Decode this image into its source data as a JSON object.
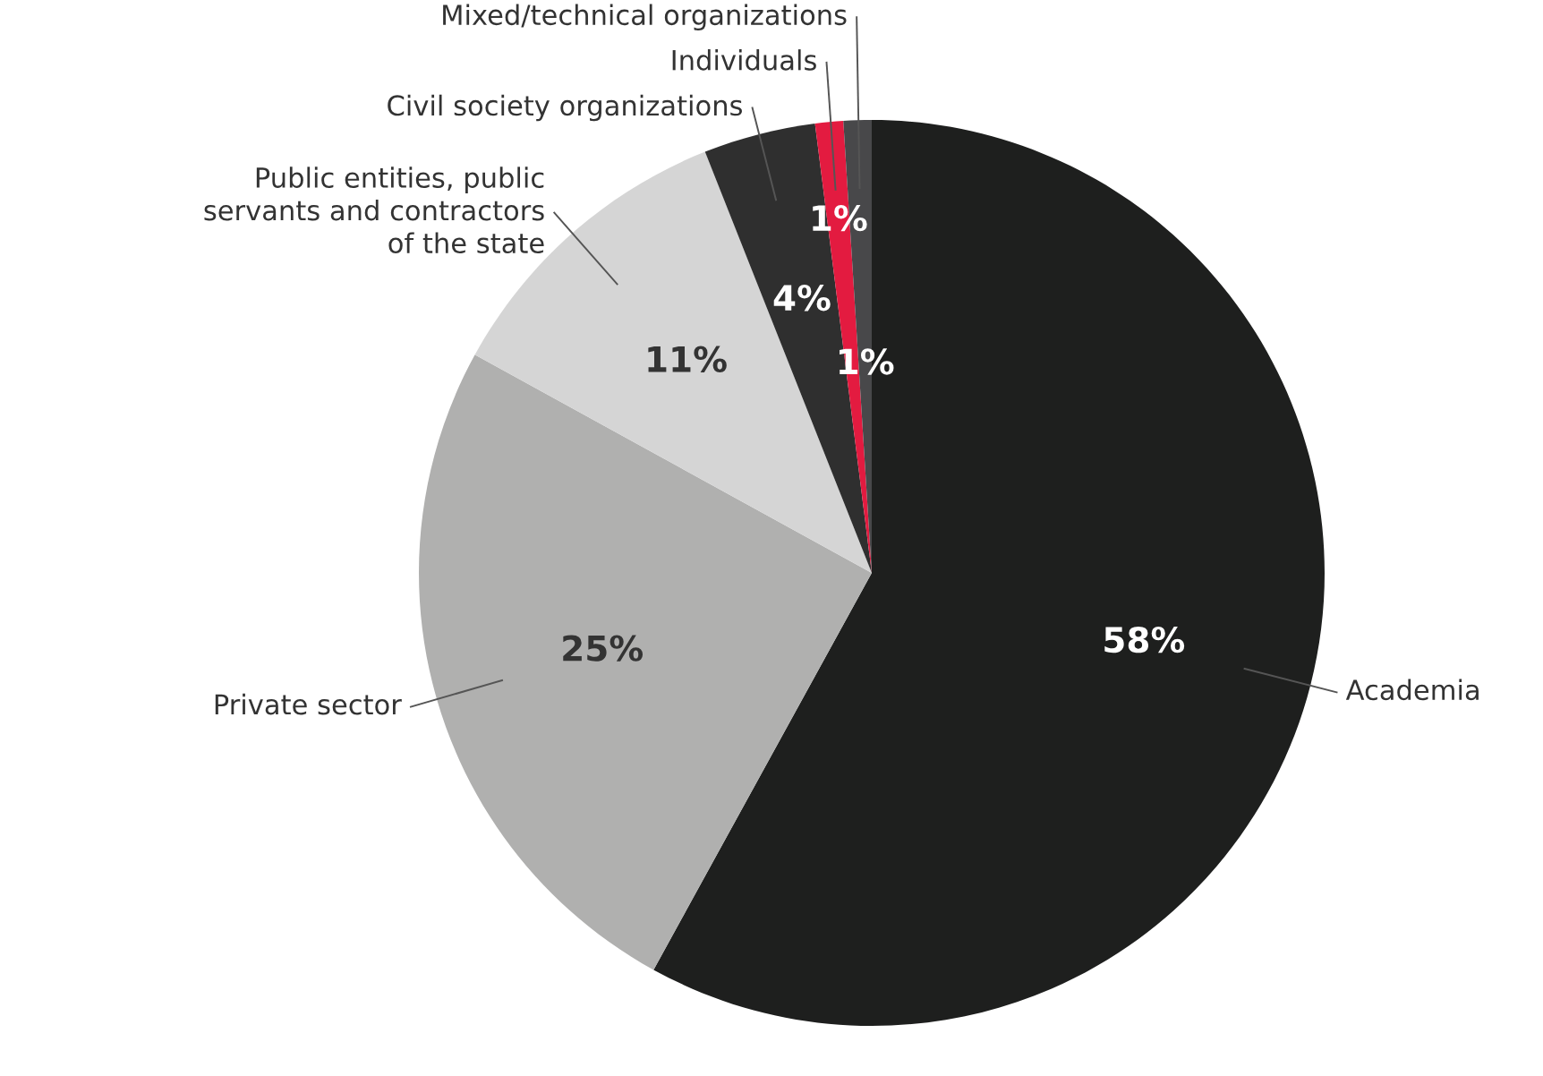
{
  "chart_data": {
    "type": "pie",
    "categories": [
      "Academia",
      "Private sector",
      "Public entities, public\nservants and contractors\nof the state",
      "Civil society organizations",
      "Individuals",
      "Mixed/technical organizations"
    ],
    "values": [
      58,
      25,
      11,
      4,
      1,
      1
    ],
    "colors": [
      "#1e1f1e",
      "#b0b0af",
      "#d5d5d5",
      "#2f2f2f",
      "#e31b40",
      "#48484a"
    ],
    "value_labels": [
      "58%",
      "25%",
      "11%",
      "4%",
      "1%",
      "1%"
    ],
    "legend": false
  }
}
